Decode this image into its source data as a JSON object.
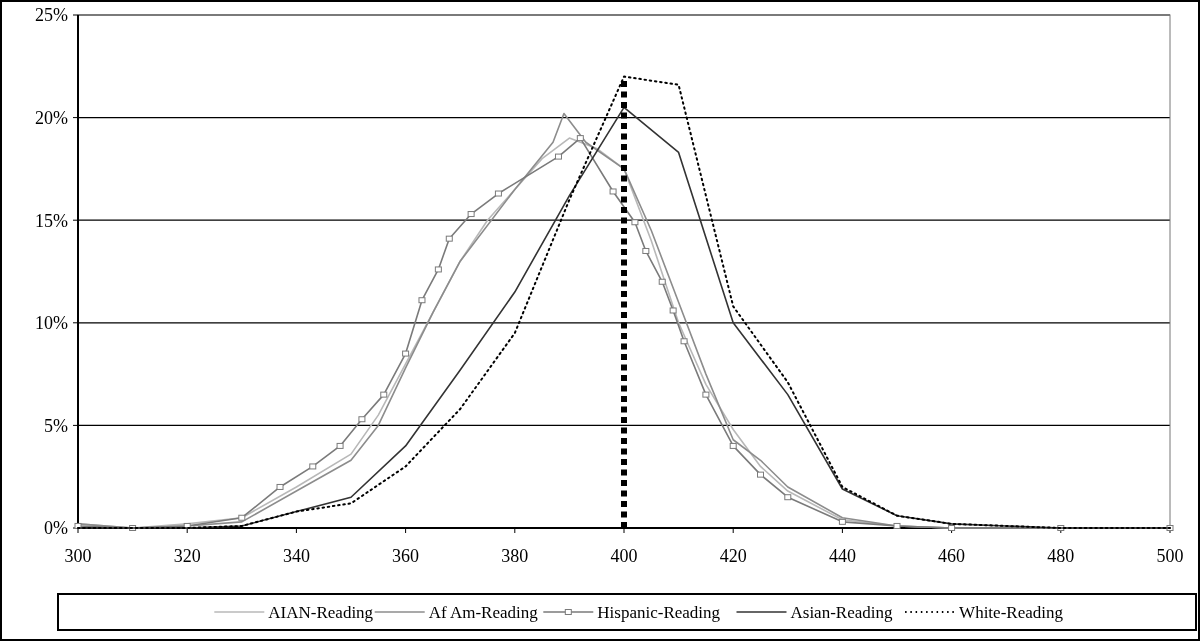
{
  "chart_data": {
    "type": "line",
    "xlim": [
      300,
      500
    ],
    "xticks": [
      300,
      320,
      340,
      360,
      380,
      400,
      420,
      440,
      460,
      480,
      500
    ],
    "ylim": [
      0,
      25
    ],
    "yticks": [
      {
        "value": 0,
        "label": "0%"
      },
      {
        "value": 5,
        "label": "5%"
      },
      {
        "value": 10,
        "label": "10%"
      },
      {
        "value": 15,
        "label": "15%"
      },
      {
        "value": 20,
        "label": "20%"
      },
      {
        "value": 25,
        "label": "25%"
      }
    ],
    "grid": "y",
    "legend": "bottom",
    "ref_lines": [
      {
        "axis": "x",
        "value": 400,
        "color": "#000000",
        "line_style": "dashed"
      }
    ],
    "series": [
      {
        "name": "AIAN-Reading",
        "color": "#b8b8b8",
        "line_style": "solid",
        "marker": "none",
        "x": [
          300,
          310,
          320,
          330,
          340,
          350,
          355,
          360,
          365,
          370,
          375,
          380,
          385,
          390,
          395,
          400,
          405,
          410,
          415,
          420,
          425,
          430,
          440,
          450,
          460,
          480,
          500
        ],
        "values": [
          0.2,
          0,
          0.2,
          0.5,
          2,
          3.6,
          5.5,
          8,
          10.5,
          13,
          15,
          16.5,
          18,
          19,
          18.5,
          17.5,
          14,
          10,
          7,
          4.8,
          3,
          1.8,
          0.4,
          0.1,
          0,
          0,
          0
        ]
      },
      {
        "name": "Af Am-Reading",
        "color": "#8c8c8c",
        "line_style": "solid",
        "marker": "none",
        "x": [
          300,
          310,
          320,
          330,
          340,
          350,
          355,
          360,
          365,
          370,
          380,
          387,
          389,
          393,
          400,
          405,
          410,
          415,
          420,
          425,
          430,
          440,
          450,
          460,
          480,
          500
        ],
        "values": [
          0.2,
          0,
          0.1,
          0.3,
          1.8,
          3.3,
          5,
          7.8,
          10.5,
          13,
          16.5,
          18.8,
          20.2,
          18.8,
          17.5,
          14.5,
          11,
          7.5,
          4.3,
          3.3,
          2,
          0.5,
          0.1,
          0,
          0,
          0
        ]
      },
      {
        "name": "Hispanic-Reading",
        "color": "#7a7a7a",
        "line_style": "solid",
        "marker": "square",
        "x": [
          300,
          310,
          320,
          330,
          337,
          343,
          348,
          352,
          356,
          360,
          363,
          366,
          368,
          372,
          377,
          388,
          392,
          398,
          402,
          404,
          407,
          409,
          411,
          415,
          420,
          425,
          430,
          440,
          450,
          460,
          480,
          500
        ],
        "values": [
          0.1,
          0,
          0.1,
          0.5,
          2,
          3,
          4,
          5.3,
          6.5,
          8.5,
          11.1,
          12.6,
          14.1,
          15.3,
          16.3,
          18.1,
          19,
          16.4,
          14.9,
          13.5,
          12,
          10.6,
          9.1,
          6.5,
          4,
          2.6,
          1.5,
          0.3,
          0.1,
          0,
          0,
          0
        ]
      },
      {
        "name": "Asian-Reading",
        "color": "#333333",
        "line_style": "solid",
        "marker": "none",
        "x": [
          300,
          310,
          320,
          330,
          340,
          350,
          360,
          370,
          380,
          390,
          400,
          410,
          420,
          430,
          440,
          450,
          460,
          470,
          480,
          490,
          500
        ],
        "values": [
          0,
          0,
          0,
          0.1,
          0.8,
          1.5,
          4,
          7.7,
          11.5,
          16.2,
          20.5,
          18.3,
          10,
          6.5,
          1.9,
          0.6,
          0.2,
          0.1,
          0,
          0,
          0
        ]
      },
      {
        "name": "White-Reading",
        "color": "#000000",
        "line_style": "dotted",
        "marker": "none",
        "x": [
          300,
          310,
          320,
          330,
          340,
          350,
          360,
          370,
          380,
          390,
          400,
          410,
          420,
          430,
          440,
          450,
          460,
          470,
          480,
          490,
          500
        ],
        "values": [
          0,
          0,
          0,
          0.1,
          0.8,
          1.2,
          3,
          5.8,
          9.5,
          16,
          22,
          21.6,
          10.8,
          7.1,
          2,
          0.6,
          0.2,
          0.1,
          0,
          0,
          0
        ]
      }
    ]
  }
}
